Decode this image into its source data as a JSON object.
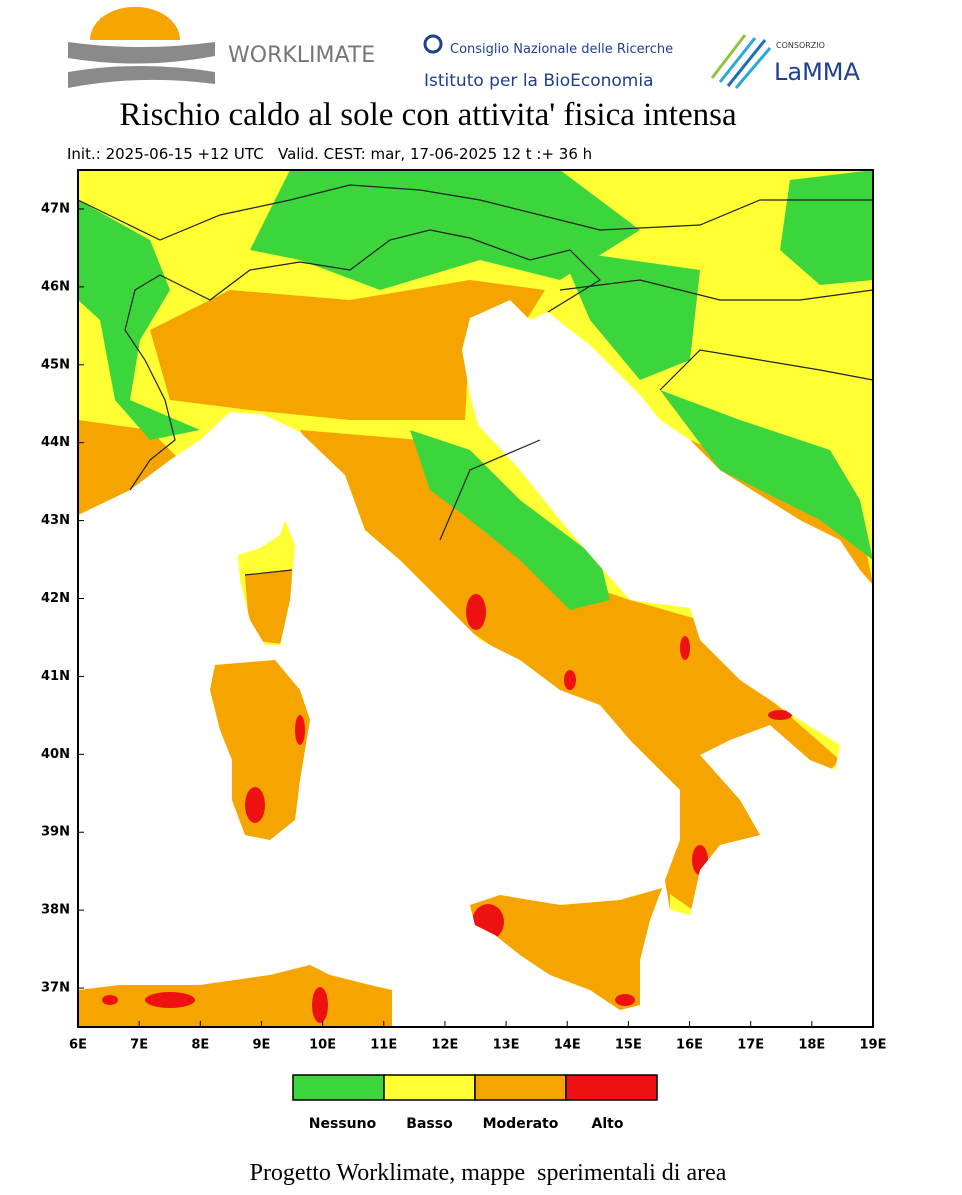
{
  "header": {
    "brand": "WORKLIMATE",
    "cnr": "Consiglio Nazionale delle Ricerche",
    "institute": "Istituto per la BioEconomia",
    "consortium": "CONSORZIO",
    "lamma": "LaMMA"
  },
  "title": "Rischio caldo al sole con attivita' fisica intensa",
  "subtitle": "Init.: 2025-06-15 +12 UTC   Valid. CEST: mar, 17-06-2025 12 t :+ 36 h",
  "map": {
    "lon_range": [
      6,
      19
    ],
    "lat_range": [
      36.5,
      47.5
    ],
    "lon_ticks": [
      {
        "value": 6,
        "label": "6E"
      },
      {
        "value": 7,
        "label": "7E"
      },
      {
        "value": 8,
        "label": "8E"
      },
      {
        "value": 9,
        "label": "9E"
      },
      {
        "value": 10,
        "label": "10E"
      },
      {
        "value": 11,
        "label": "11E"
      },
      {
        "value": 12,
        "label": "12E"
      },
      {
        "value": 13,
        "label": "13E"
      },
      {
        "value": 14,
        "label": "14E"
      },
      {
        "value": 15,
        "label": "15E"
      },
      {
        "value": 16,
        "label": "16E"
      },
      {
        "value": 17,
        "label": "17E"
      },
      {
        "value": 18,
        "label": "18E"
      },
      {
        "value": 19,
        "label": "19E"
      }
    ],
    "lat_ticks": [
      {
        "value": 37,
        "label": "37N"
      },
      {
        "value": 38,
        "label": "38N"
      },
      {
        "value": 39,
        "label": "39N"
      },
      {
        "value": 40,
        "label": "40N"
      },
      {
        "value": 41,
        "label": "41N"
      },
      {
        "value": 42,
        "label": "42N"
      },
      {
        "value": 43,
        "label": "43N"
      },
      {
        "value": 44,
        "label": "44N"
      },
      {
        "value": 45,
        "label": "45N"
      },
      {
        "value": 46,
        "label": "46N"
      },
      {
        "value": 47,
        "label": "47N"
      }
    ]
  },
  "legend": [
    {
      "name": "Nessuno",
      "color": "#3cd63c"
    },
    {
      "name": "Basso",
      "color": "#ffff33"
    },
    {
      "name": "Moderato",
      "color": "#f6a400"
    },
    {
      "name": "Alto",
      "color": "#ee1111"
    }
  ],
  "footer": "Progetto Worklimate, mappe  sperimentali di area"
}
